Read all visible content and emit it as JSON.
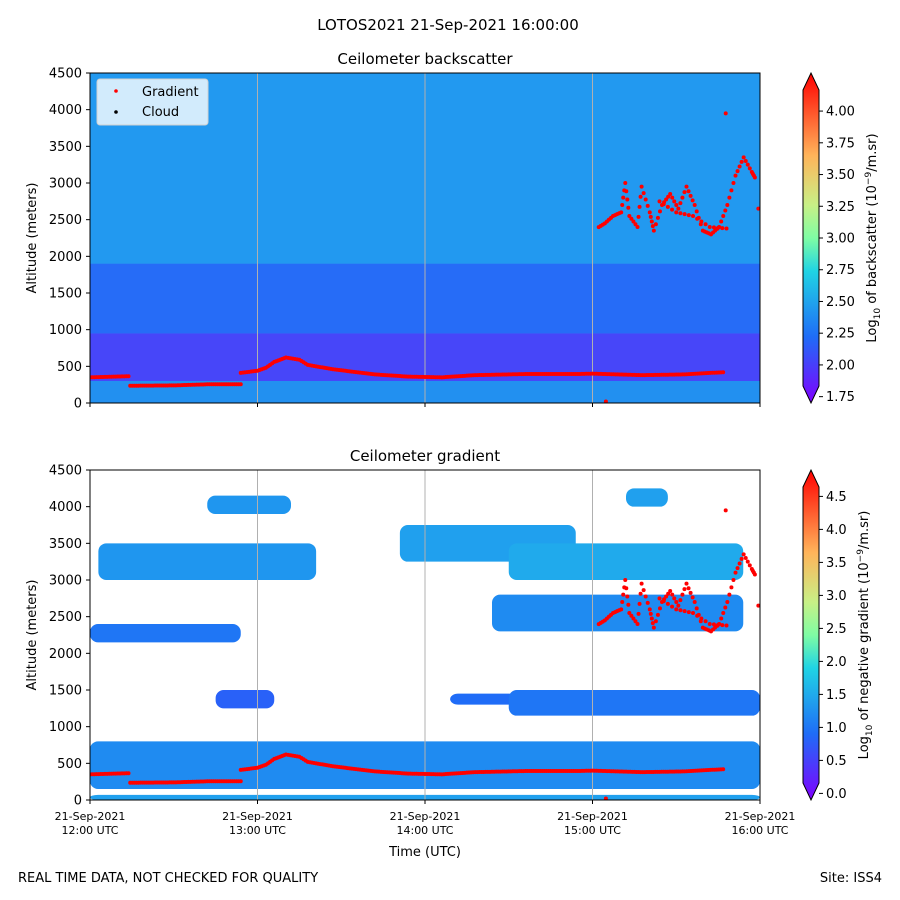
{
  "figure": {
    "suptitle": "LOTOS2021 21-Sep-2021 16:00:00",
    "footer_left": "REAL TIME DATA, NOT CHECKED FOR QUALITY",
    "footer_right": "Site: ISS4"
  },
  "colors": {
    "gradient_points": "#ff0000",
    "cloud_points": "#000000",
    "backscatter_background": "#3d8bf2",
    "gradient_background": "#ffffff",
    "gridline": "#b0b0b0"
  },
  "chart_data": [
    {
      "type": "heatmap",
      "title": "Ceilometer backscatter",
      "xlabel": "",
      "ylabel": "Altitude (meters)",
      "xlim_hours_utc": [
        12,
        16
      ],
      "ylim": [
        0,
        4500
      ],
      "yticks": [
        0,
        500,
        1000,
        1500,
        2000,
        2500,
        3000,
        3500,
        4000,
        4500
      ],
      "xticks_hours_utc": [
        12,
        13,
        14,
        15,
        16
      ],
      "grid": "vertical",
      "legend": {
        "placement": "top-left",
        "entries": [
          {
            "label": "Gradient",
            "color": "#ff0000"
          },
          {
            "label": "Cloud",
            "color": "#000000"
          }
        ]
      },
      "colorbar": {
        "label_prefix": "Log",
        "label_sub": "10",
        "label_mid": " of backscatter (10",
        "label_sup": "−9",
        "label_suffix": "/m.sr)",
        "range": [
          1.7,
          4.3
        ],
        "ticks": [
          "1.75",
          "2.00",
          "2.25",
          "2.50",
          "2.75",
          "3.00",
          "3.25",
          "3.50",
          "3.75",
          "4.00"
        ]
      },
      "layers_altitude_m": [
        {
          "name": "surface-layer",
          "range": [
            0,
            300
          ],
          "log10": 2.4
        },
        {
          "name": "boundary-layer",
          "range": [
            300,
            950
          ],
          "log10": 2.0
        },
        {
          "name": "residual-layer",
          "range": [
            950,
            1900
          ],
          "log10": 2.2
        },
        {
          "name": "free-troposphere",
          "range": [
            1900,
            4500
          ],
          "log10": 2.45
        }
      ]
    },
    {
      "type": "heatmap",
      "title": "Ceilometer gradient",
      "xlabel": "Time (UTC)",
      "ylabel": "Altitude (meters)",
      "xlim_hours_utc": [
        12,
        16
      ],
      "ylim": [
        0,
        4500
      ],
      "yticks": [
        0,
        500,
        1000,
        1500,
        2000,
        2500,
        3000,
        3500,
        4000,
        4500
      ],
      "xticks_hours_utc": [
        12,
        13,
        14,
        15,
        16
      ],
      "xtick_labels": [
        [
          "21-Sep-2021",
          "12:00 UTC"
        ],
        [
          "21-Sep-2021",
          "13:00 UTC"
        ],
        [
          "21-Sep-2021",
          "14:00 UTC"
        ],
        [
          "21-Sep-2021",
          "15:00 UTC"
        ],
        [
          "21-Sep-2021",
          "16:00 UTC"
        ]
      ],
      "grid": "vertical",
      "colorbar": {
        "label_prefix": "Log",
        "label_sub": "10",
        "label_mid": " of negative gradient (10",
        "label_sup": "−9",
        "label_suffix": "/m.sr)",
        "range": [
          -0.1,
          4.9
        ],
        "ticks": [
          "0.0",
          "0.5",
          "1.0",
          "1.5",
          "2.0",
          "2.5",
          "3.0",
          "3.5",
          "4.0",
          "4.5"
        ]
      },
      "gradient_bands": [
        {
          "name": "boundary-layer-band",
          "t_start": 12.0,
          "t_end": 16.0,
          "bottom_m": 150,
          "top_m": 800,
          "log10": 1.2
        },
        {
          "name": "surface-band",
          "t_start": 12.0,
          "t_end": 16.0,
          "bottom_m": 0,
          "top_m": 70,
          "log10": 1.4
        },
        {
          "name": "residual-band-1",
          "t_start": 12.75,
          "t_end": 13.1,
          "bottom_m": 1250,
          "top_m": 1500,
          "log10": 0.8
        },
        {
          "name": "residual-band-2",
          "t_start": 14.15,
          "t_end": 14.55,
          "bottom_m": 1300,
          "top_m": 1450,
          "log10": 0.9
        },
        {
          "name": "residual-band-3",
          "t_start": 14.5,
          "t_end": 16.0,
          "bottom_m": 1150,
          "top_m": 1500,
          "log10": 1.0
        },
        {
          "name": "upper-band-1",
          "t_start": 12.0,
          "t_end": 12.9,
          "bottom_m": 2150,
          "top_m": 2400,
          "log10": 1.0
        },
        {
          "name": "upper-band-2",
          "t_start": 14.4,
          "t_end": 15.9,
          "bottom_m": 2300,
          "top_m": 2800,
          "log10": 1.2
        },
        {
          "name": "upper-band-3",
          "t_start": 12.05,
          "t_end": 13.35,
          "bottom_m": 3000,
          "top_m": 3500,
          "log10": 1.3
        },
        {
          "name": "upper-band-4",
          "t_start": 13.85,
          "t_end": 14.9,
          "bottom_m": 3250,
          "top_m": 3750,
          "log10": 1.4
        },
        {
          "name": "upper-band-5",
          "t_start": 14.5,
          "t_end": 15.9,
          "bottom_m": 3000,
          "top_m": 3500,
          "log10": 1.5
        },
        {
          "name": "upper-band-6",
          "t_start": 12.7,
          "t_end": 13.2,
          "bottom_m": 3900,
          "top_m": 4150,
          "log10": 1.3
        },
        {
          "name": "upper-band-7",
          "t_start": 15.2,
          "t_end": 15.45,
          "bottom_m": 4000,
          "top_m": 4250,
          "log10": 1.4
        }
      ]
    }
  ],
  "gradient_series": {
    "segments": [
      [
        [
          12.0,
          350
        ],
        [
          12.23,
          365
        ]
      ],
      [
        [
          12.24,
          235
        ],
        [
          12.5,
          240
        ],
        [
          12.7,
          255
        ],
        [
          12.9,
          255
        ]
      ],
      [
        [
          12.9,
          410
        ],
        [
          13.0,
          440
        ],
        [
          13.05,
          480
        ],
        [
          13.1,
          560
        ],
        [
          13.17,
          620
        ],
        [
          13.25,
          590
        ],
        [
          13.3,
          520
        ],
        [
          13.45,
          460
        ],
        [
          13.7,
          390
        ],
        [
          13.9,
          360
        ],
        [
          14.1,
          350
        ],
        [
          14.3,
          380
        ],
        [
          14.6,
          395
        ],
        [
          14.9,
          395
        ],
        [
          15.0,
          400
        ],
        [
          15.3,
          380
        ],
        [
          15.55,
          390
        ],
        [
          15.78,
          420
        ]
      ]
    ],
    "upper": [
      [
        15.4,
        2750
      ],
      [
        15.5,
        2600
      ],
      [
        15.6,
        2550
      ],
      [
        15.7,
        2400
      ],
      [
        15.8,
        2380
      ],
      [
        15.9,
        2450
      ],
      [
        16.0,
        2550
      ],
      [
        16.1,
        2600
      ],
      [
        16.15,
        3000
      ],
      [
        16.2,
        2550
      ],
      [
        16.3,
        2400
      ],
      [
        16.35,
        2950
      ],
      [
        16.45,
        2600
      ],
      [
        16.5,
        2350
      ],
      [
        16.6,
        2700
      ],
      [
        16.7,
        2850
      ],
      [
        16.8,
        2650
      ],
      [
        16.9,
        2950
      ],
      [
        17.0,
        2700
      ],
      [
        17.1,
        2350
      ],
      [
        17.2,
        2300
      ],
      [
        17.3,
        2400
      ],
      [
        17.4,
        2700
      ],
      [
        17.5,
        3100
      ],
      [
        17.6,
        3350
      ],
      [
        17.7,
        3150
      ],
      [
        17.75,
        3050
      ]
    ],
    "stray": [
      [
        15.08,
        20
      ],
      [
        17.38,
        3950
      ],
      [
        17.78,
        2650
      ]
    ]
  }
}
